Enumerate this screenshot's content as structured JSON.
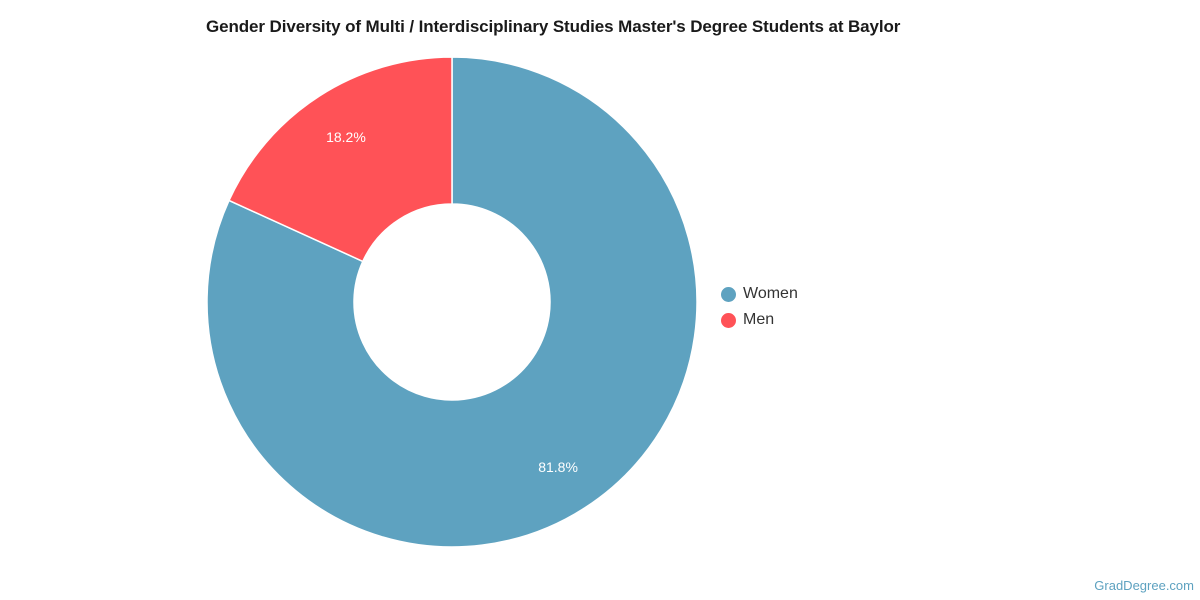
{
  "chart_data": {
    "type": "pie",
    "variant": "donut",
    "title": "Gender Diversity of Multi / Interdisciplinary Studies Master's Degree Students at Baylor",
    "categories": [
      "Women",
      "Men"
    ],
    "values": [
      81.8,
      18.2
    ],
    "value_labels": [
      "81.8%",
      "18.2%"
    ],
    "colors": [
      "#5ea2c0",
      "#ff5257"
    ],
    "legend_position": "right"
  },
  "watermark": "GradDegree.com"
}
